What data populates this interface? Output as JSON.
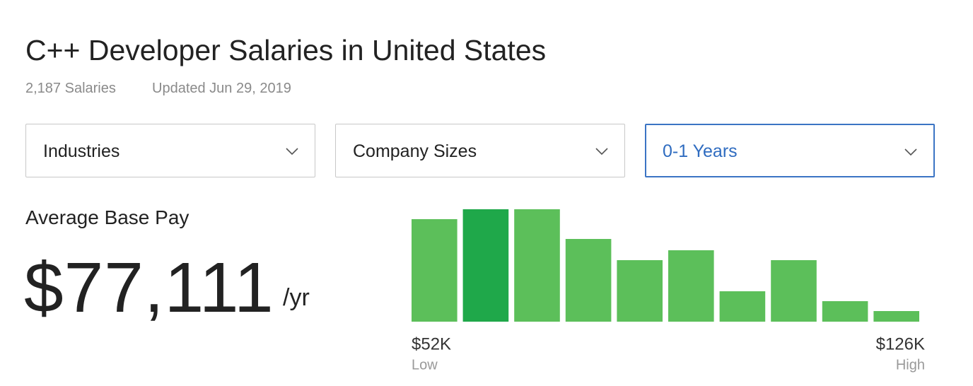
{
  "header": {
    "title": "C++ Developer Salaries in United States",
    "count": "2,187 Salaries",
    "updated": "Updated Jun 29, 2019"
  },
  "filters": [
    "Industries",
    "Company Sizes",
    "0-1 Years"
  ],
  "summary": {
    "label": "Average Base Pay",
    "value": "$77,111",
    "unit": "/yr"
  },
  "chart_data": {
    "type": "histogram",
    "values": [
      145,
      159,
      159,
      117,
      87,
      101,
      43,
      87,
      29,
      15
    ],
    "colors": [
      "#5cbf5a",
      "#1fa84a",
      "#5cbf5a",
      "#5cbf5a",
      "#5cbf5a",
      "#5cbf5a",
      "#5cbf5a",
      "#5cbf5a",
      "#5cbf5a",
      "#5cbf5a"
    ],
    "xticks": [
      {
        "value": 52000,
        "label": "$52K"
      },
      {
        "value": 126000,
        "label": "$126K"
      }
    ],
    "xtick_captions": [
      "Low",
      "High"
    ]
  }
}
